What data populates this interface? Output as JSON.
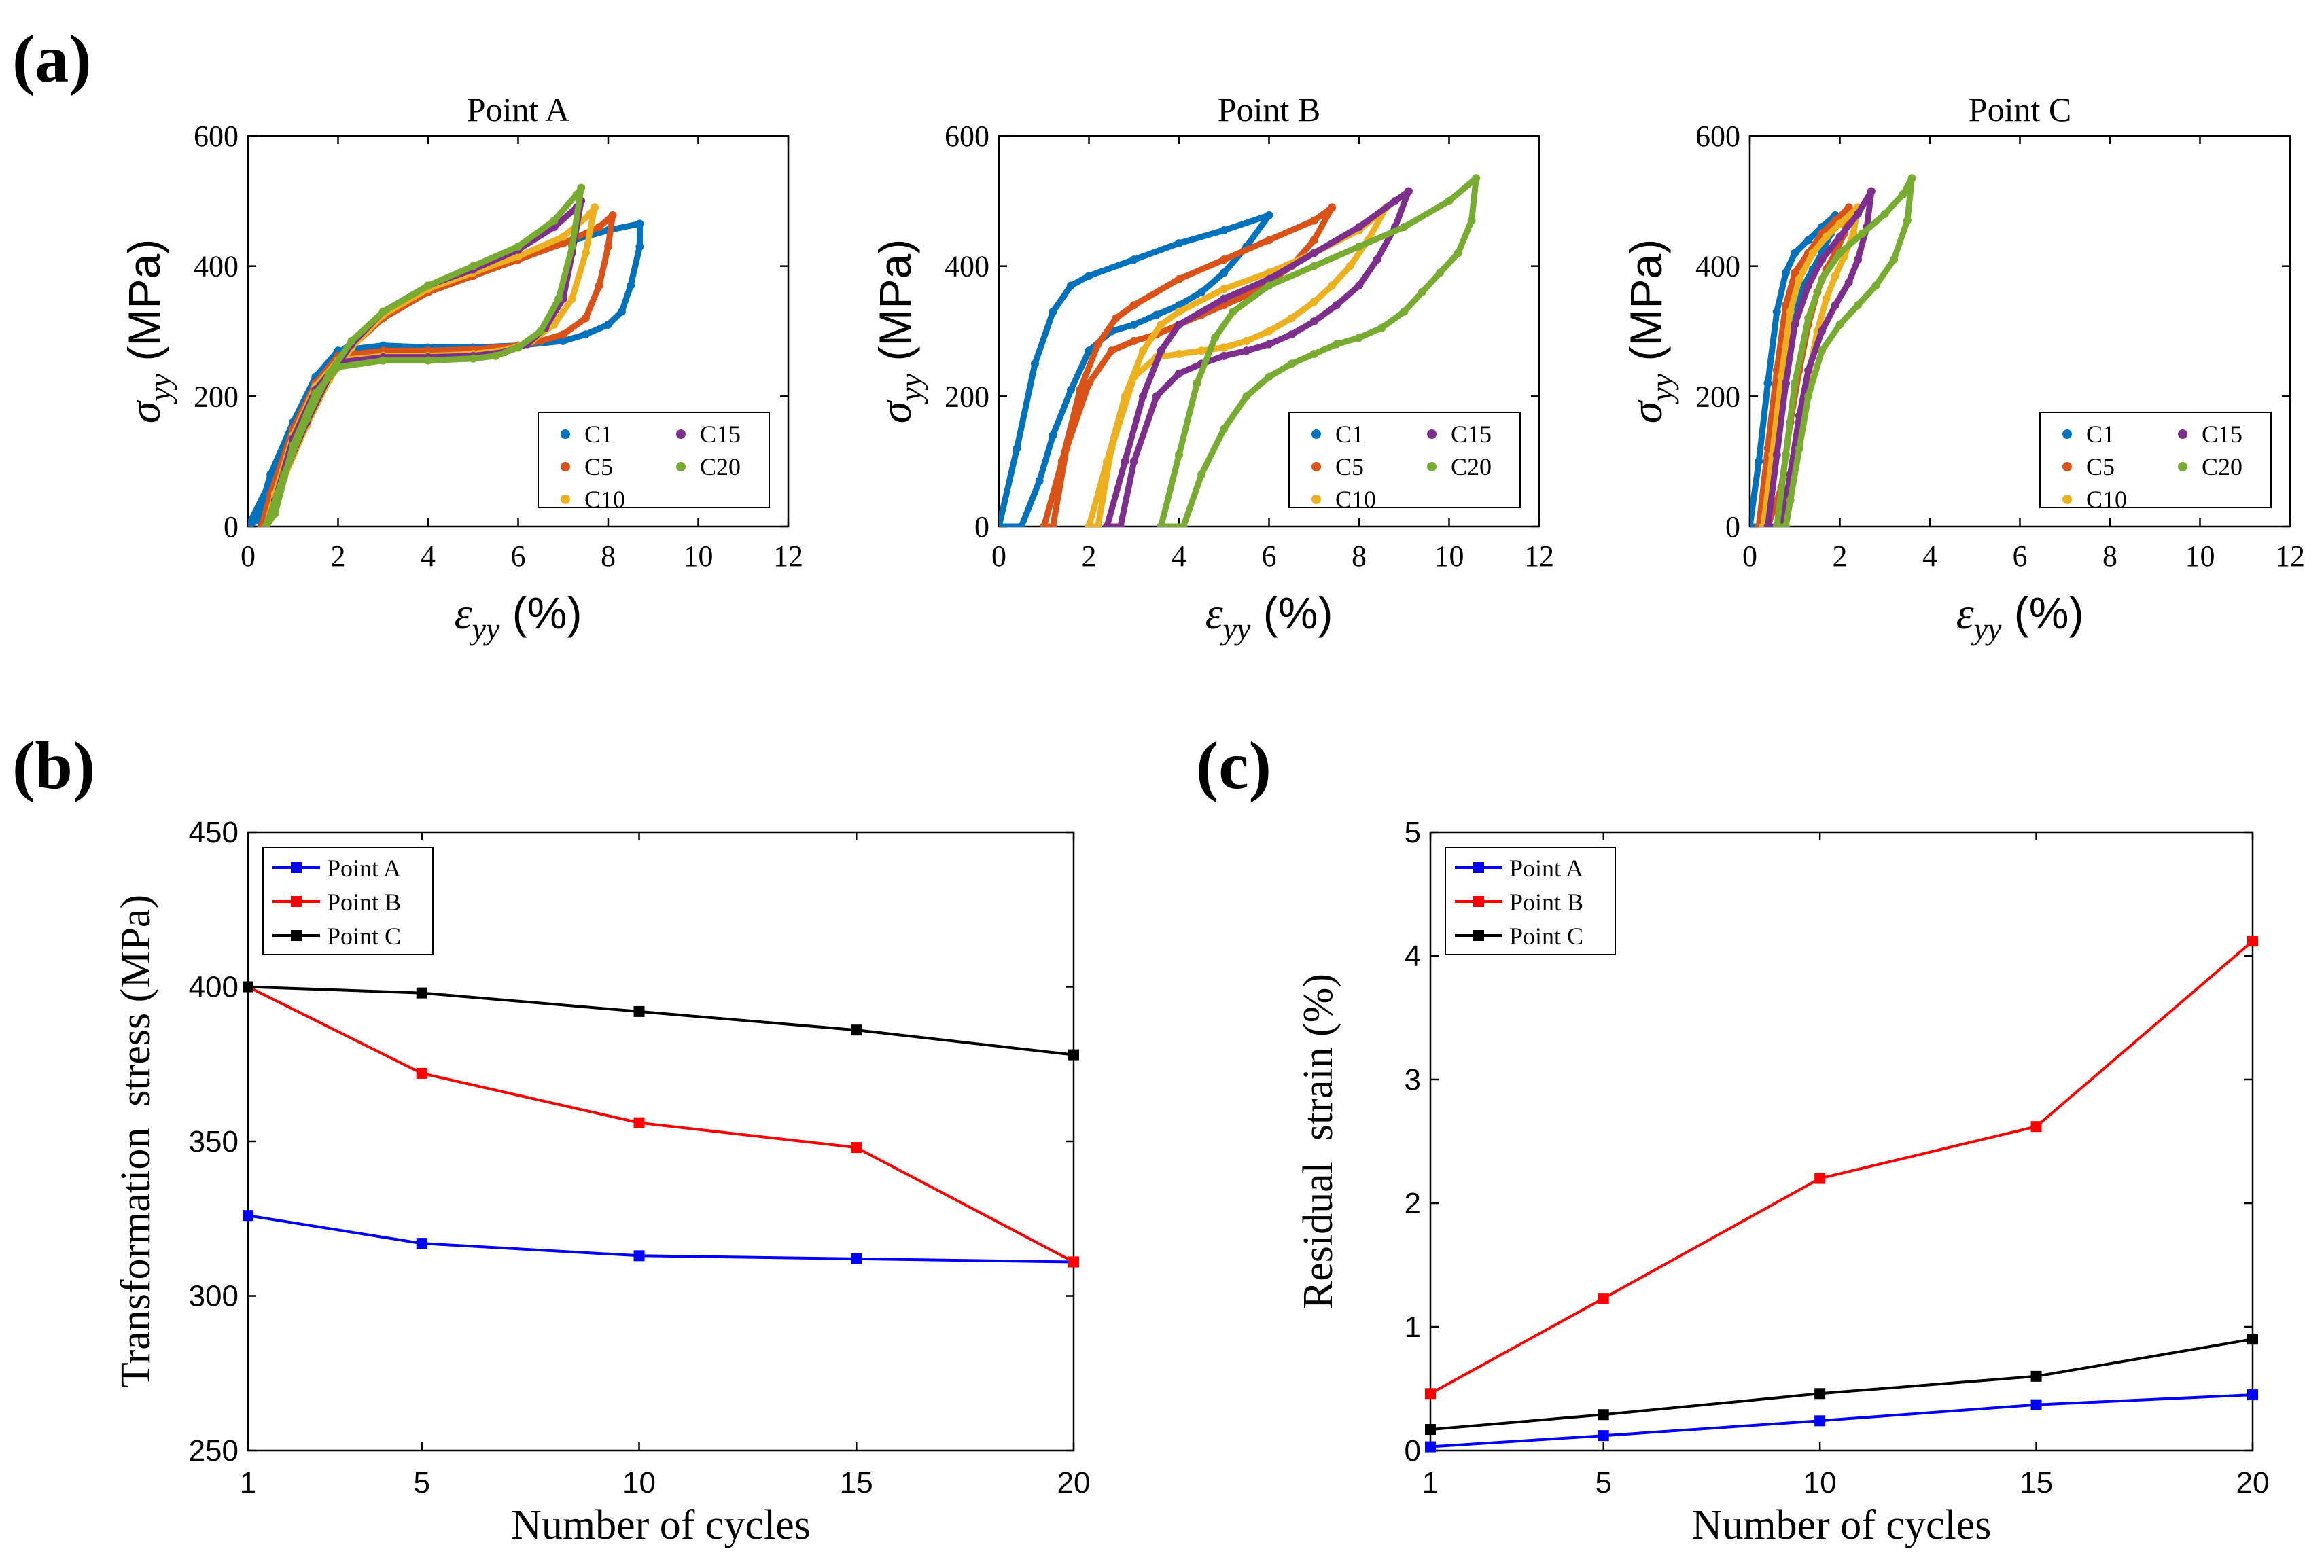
{
  "panels": {
    "a": "(a)",
    "b": "(b)",
    "c": "(c)"
  },
  "colors": {
    "C1": "#0072BD",
    "C5": "#D95319",
    "C10": "#EDB120",
    "C15": "#7E2F8E",
    "C20": "#77AC30",
    "PointA": "#0000FF",
    "PointB": "#FF0000",
    "PointC": "#000000"
  },
  "chart_data": [
    {
      "id": "a1",
      "type": "scatter",
      "title": "Point A",
      "xlabel": "ε",
      "xlabel_sub": "yy",
      "xlabel_unit": " (%)",
      "ylabel": "σ",
      "ylabel_sub": "yy",
      "ylabel_unit": " (MPa)",
      "xlim": [
        0,
        12
      ],
      "ylim": [
        0,
        600
      ],
      "xticks": [
        0,
        2,
        4,
        6,
        8,
        10,
        12
      ],
      "yticks": [
        0,
        200,
        400,
        600
      ],
      "legend": [
        "C1",
        "C5",
        "C10",
        "C15",
        "C20"
      ],
      "legend_position": "lower-right",
      "series": [
        {
          "name": "C1",
          "x": [
            0.0,
            0.5,
            1.0,
            1.5,
            2.0,
            3.0,
            4.0,
            5.0,
            6.0,
            7.0,
            8.0,
            8.7,
            8.7,
            8.5,
            8.3,
            8.0,
            7.5,
            7.0,
            6.0,
            5.0,
            4.0,
            3.0,
            2.0,
            1.5,
            1.0,
            0.5,
            0.2
          ],
          "y": [
            0,
            70,
            140,
            210,
            265,
            320,
            360,
            385,
            410,
            435,
            455,
            465,
            430,
            370,
            330,
            310,
            295,
            285,
            278,
            275,
            275,
            278,
            270,
            230,
            160,
            80,
            10
          ]
        },
        {
          "name": "C5",
          "x": [
            0.3,
            0.7,
            1.2,
            1.7,
            2.2,
            3.0,
            4.0,
            5.0,
            6.0,
            7.0,
            7.8,
            8.1,
            8.0,
            7.8,
            7.5,
            7.0,
            6.5,
            6.0,
            5.0,
            4.0,
            3.0,
            2.0,
            1.5,
            1.0,
            0.5
          ],
          "y": [
            0,
            70,
            150,
            220,
            270,
            320,
            360,
            385,
            410,
            435,
            460,
            478,
            430,
            370,
            320,
            295,
            285,
            278,
            272,
            270,
            270,
            262,
            220,
            150,
            50
          ]
        },
        {
          "name": "C10",
          "x": [
            0.4,
            0.8,
            1.3,
            1.8,
            2.3,
            3.0,
            4.0,
            5.0,
            6.0,
            7.0,
            7.6,
            7.7,
            7.5,
            7.2,
            6.8,
            6.3,
            5.8,
            5.0,
            4.0,
            3.0,
            2.0,
            1.5,
            1.0,
            0.6
          ],
          "y": [
            0,
            75,
            155,
            225,
            275,
            325,
            365,
            390,
            415,
            445,
            480,
            490,
            420,
            350,
            310,
            285,
            272,
            265,
            262,
            262,
            255,
            215,
            140,
            50
          ]
        },
        {
          "name": "C15",
          "x": [
            0.4,
            0.8,
            1.3,
            1.8,
            2.3,
            3.0,
            4.0,
            5.0,
            6.0,
            6.8,
            7.3,
            7.4,
            7.2,
            7.0,
            6.6,
            6.2,
            5.7,
            5.0,
            4.0,
            3.0,
            2.0,
            1.5,
            1.0,
            0.6
          ],
          "y": [
            0,
            80,
            160,
            230,
            280,
            330,
            370,
            395,
            425,
            460,
            490,
            500,
            420,
            350,
            305,
            280,
            268,
            262,
            260,
            260,
            252,
            210,
            135,
            40
          ]
        },
        {
          "name": "C20",
          "x": [
            0.4,
            0.8,
            1.3,
            1.8,
            2.3,
            3.0,
            4.0,
            5.0,
            6.0,
            6.8,
            7.3,
            7.4,
            7.2,
            6.9,
            6.5,
            6.0,
            5.5,
            5.0,
            4.0,
            3.0,
            2.0,
            1.5,
            1.0,
            0.6
          ],
          "y": [
            0,
            80,
            165,
            235,
            285,
            330,
            370,
            400,
            430,
            470,
            510,
            520,
            430,
            350,
            300,
            275,
            262,
            258,
            255,
            255,
            245,
            205,
            125,
            20
          ]
        }
      ]
    },
    {
      "id": "a2",
      "type": "scatter",
      "title": "Point B",
      "xlabel": "ε",
      "xlabel_sub": "yy",
      "xlabel_unit": " (%)",
      "ylabel": "σ",
      "ylabel_sub": "yy",
      "ylabel_unit": " (MPa)",
      "xlim": [
        0,
        12
      ],
      "ylim": [
        0,
        600
      ],
      "xticks": [
        0,
        2,
        4,
        6,
        8,
        10,
        12
      ],
      "yticks": [
        0,
        200,
        400,
        600
      ],
      "legend": [
        "C1",
        "C5",
        "C10",
        "C15",
        "C20"
      ],
      "legend_position": "lower-right",
      "series": [
        {
          "name": "C1",
          "x": [
            0.0,
            0.4,
            0.8,
            1.2,
            1.6,
            2.0,
            3.0,
            4.0,
            5.0,
            6.0,
            5.5,
            5.0,
            4.5,
            4.0,
            3.5,
            3.0,
            2.5,
            2.0,
            1.6,
            1.2,
            0.9,
            0.5
          ],
          "y": [
            0,
            120,
            250,
            330,
            370,
            385,
            410,
            435,
            455,
            478,
            430,
            390,
            360,
            340,
            325,
            310,
            300,
            270,
            210,
            140,
            70,
            0
          ]
        },
        {
          "name": "C5",
          "x": [
            1.0,
            1.4,
            1.8,
            2.2,
            2.6,
            3.0,
            4.0,
            5.0,
            6.0,
            7.0,
            7.4,
            7.0,
            6.5,
            6.0,
            5.5,
            5.0,
            4.5,
            4.0,
            3.5,
            3.0,
            2.5,
            2.0,
            1.5,
            1.2
          ],
          "y": [
            0,
            100,
            210,
            280,
            320,
            340,
            380,
            410,
            440,
            470,
            490,
            440,
            400,
            375,
            355,
            340,
            325,
            310,
            295,
            285,
            270,
            220,
            120,
            0
          ]
        },
        {
          "name": "C10",
          "x": [
            2.0,
            2.4,
            2.8,
            3.2,
            3.6,
            4.0,
            5.0,
            6.0,
            7.0,
            8.0,
            8.6,
            8.2,
            7.8,
            7.4,
            7.0,
            6.5,
            6.0,
            5.5,
            5.0,
            4.5,
            4.0,
            3.5,
            3.0,
            2.5,
            2.2
          ],
          "y": [
            0,
            100,
            200,
            270,
            310,
            330,
            365,
            390,
            420,
            455,
            490,
            440,
            400,
            370,
            345,
            320,
            300,
            285,
            275,
            270,
            265,
            260,
            230,
            120,
            0
          ]
        },
        {
          "name": "C15",
          "x": [
            2.4,
            2.8,
            3.2,
            3.6,
            4.0,
            5.0,
            6.0,
            7.0,
            8.0,
            8.8,
            9.1,
            8.8,
            8.4,
            8.0,
            7.5,
            7.0,
            6.5,
            6.0,
            5.5,
            5.0,
            4.5,
            4.0,
            3.5,
            3.0,
            2.7
          ],
          "y": [
            0,
            100,
            200,
            270,
            310,
            350,
            380,
            420,
            460,
            500,
            515,
            460,
            410,
            370,
            340,
            315,
            295,
            280,
            270,
            262,
            250,
            235,
            200,
            100,
            0
          ]
        },
        {
          "name": "C20",
          "x": [
            3.6,
            4.0,
            4.4,
            4.8,
            5.2,
            6.0,
            7.0,
            8.0,
            9.0,
            10.0,
            10.6,
            10.5,
            10.2,
            9.8,
            9.4,
            9.0,
            8.5,
            8.0,
            7.5,
            7.0,
            6.5,
            6.0,
            5.5,
            5.0,
            4.5,
            4.1
          ],
          "y": [
            0,
            110,
            220,
            290,
            330,
            370,
            400,
            430,
            460,
            500,
            535,
            470,
            420,
            390,
            360,
            330,
            305,
            290,
            280,
            265,
            250,
            230,
            200,
            150,
            80,
            0
          ]
        }
      ]
    },
    {
      "id": "a3",
      "type": "scatter",
      "title": "Point C",
      "xlabel": "ε",
      "xlabel_sub": "yy",
      "xlabel_unit": " (%)",
      "ylabel": "σ",
      "ylabel_sub": "yy",
      "ylabel_unit": " (MPa)",
      "xlim": [
        0,
        12
      ],
      "ylim": [
        0,
        600
      ],
      "xticks": [
        0,
        2,
        4,
        6,
        8,
        10,
        12
      ],
      "yticks": [
        0,
        200,
        400,
        600
      ],
      "legend": [
        "C1",
        "C5",
        "C10",
        "C15",
        "C20"
      ],
      "legend_position": "lower-right",
      "series": [
        {
          "name": "C1",
          "x": [
            0.0,
            0.2,
            0.4,
            0.6,
            0.8,
            1.0,
            1.3,
            1.6,
            1.9,
            1.8,
            1.6,
            1.4,
            1.2,
            1.0,
            0.8,
            0.6,
            0.4,
            0.2
          ],
          "y": [
            0,
            100,
            220,
            330,
            390,
            420,
            440,
            460,
            478,
            450,
            420,
            395,
            370,
            340,
            280,
            200,
            100,
            0
          ]
        },
        {
          "name": "C5",
          "x": [
            0.2,
            0.4,
            0.6,
            0.8,
            1.0,
            1.3,
            1.6,
            1.9,
            2.2,
            2.1,
            1.9,
            1.7,
            1.5,
            1.3,
            1.1,
            0.9,
            0.7,
            0.4
          ],
          "y": [
            0,
            120,
            240,
            340,
            390,
            420,
            450,
            470,
            490,
            450,
            420,
            395,
            360,
            310,
            240,
            160,
            60,
            0
          ]
        },
        {
          "name": "C10",
          "x": [
            0.3,
            0.5,
            0.7,
            0.9,
            1.1,
            1.4,
            1.7,
            2.0,
            2.4,
            2.3,
            2.1,
            1.9,
            1.7,
            1.5,
            1.3,
            1.1,
            0.9,
            0.6
          ],
          "y": [
            0,
            110,
            230,
            330,
            380,
            420,
            445,
            465,
            490,
            450,
            415,
            385,
            350,
            300,
            230,
            150,
            60,
            0
          ]
        },
        {
          "name": "C15",
          "x": [
            0.4,
            0.6,
            0.8,
            1.0,
            1.3,
            1.6,
            2.0,
            2.4,
            2.7,
            2.6,
            2.4,
            2.2,
            1.9,
            1.6,
            1.3,
            1.1,
            0.9,
            0.7
          ],
          "y": [
            0,
            110,
            220,
            310,
            370,
            410,
            445,
            480,
            515,
            460,
            410,
            375,
            340,
            300,
            240,
            170,
            80,
            0
          ]
        },
        {
          "name": "C20",
          "x": [
            0.6,
            0.8,
            1.0,
            1.3,
            1.6,
            2.0,
            2.5,
            3.0,
            3.4,
            3.6,
            3.5,
            3.2,
            2.8,
            2.4,
            2.0,
            1.6,
            1.3,
            1.1,
            0.9,
            0.8
          ],
          "y": [
            0,
            110,
            220,
            320,
            380,
            420,
            450,
            480,
            510,
            535,
            470,
            410,
            370,
            340,
            310,
            270,
            200,
            120,
            40,
            0
          ]
        }
      ]
    },
    {
      "id": "b",
      "type": "line",
      "title": "",
      "xlabel": "Number of cycles",
      "ylabel": "Transformation  stress (MPa)",
      "x": [
        1,
        5,
        10,
        15,
        20
      ],
      "xlim": [
        1,
        20
      ],
      "ylim": [
        250,
        450
      ],
      "xticks": [
        1,
        5,
        10,
        15,
        20
      ],
      "yticks": [
        250,
        300,
        350,
        400,
        450
      ],
      "legend_position": "top-left",
      "series": [
        {
          "name": "Point A",
          "values": [
            326,
            317,
            313,
            312,
            311
          ]
        },
        {
          "name": "Point B",
          "values": [
            400,
            372,
            356,
            348,
            311
          ]
        },
        {
          "name": "Point C",
          "values": [
            400,
            398,
            392,
            386,
            378
          ]
        }
      ]
    },
    {
      "id": "c",
      "type": "line",
      "title": "",
      "xlabel": "Number of cycles",
      "ylabel": "Residual  strain (%)",
      "x": [
        1,
        5,
        10,
        15,
        20
      ],
      "xlim": [
        1,
        20
      ],
      "ylim": [
        0,
        5
      ],
      "xticks": [
        1,
        5,
        10,
        15,
        20
      ],
      "yticks": [
        0,
        1,
        2,
        3,
        4,
        5
      ],
      "legend_position": "top-left",
      "series": [
        {
          "name": "Point A",
          "values": [
            0.03,
            0.12,
            0.24,
            0.37,
            0.45
          ]
        },
        {
          "name": "Point B",
          "values": [
            0.46,
            1.23,
            2.2,
            2.62,
            4.12
          ]
        },
        {
          "name": "Point C",
          "values": [
            0.17,
            0.29,
            0.46,
            0.6,
            0.9
          ]
        }
      ]
    }
  ]
}
